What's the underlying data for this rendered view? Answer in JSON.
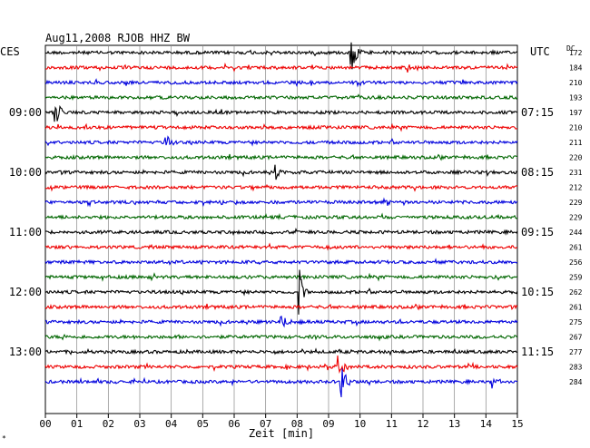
{
  "chart_data": {
    "type": "line",
    "title": "Aug11,2008   RJOB HHZ BW",
    "left_tz_label": "CES",
    "right_tz_label": "UTC",
    "dc_label": "DC",
    "xlabel": "Zeit [min]",
    "x_ticks": [
      "00",
      "01",
      "02",
      "03",
      "04",
      "05",
      "06",
      "07",
      "08",
      "09",
      "10",
      "11",
      "12",
      "13",
      "14",
      "15"
    ],
    "xlim": [
      0,
      15
    ],
    "grid": true,
    "left_time_labels": [
      {
        "row": 4,
        "text": "09:00"
      },
      {
        "row": 8,
        "text": "10:00"
      },
      {
        "row": 12,
        "text": "11:00"
      },
      {
        "row": 16,
        "text": "12:00"
      },
      {
        "row": 20,
        "text": "13:00"
      }
    ],
    "right_time_labels": [
      {
        "row": 4,
        "text": "07:15"
      },
      {
        "row": 8,
        "text": "08:15"
      },
      {
        "row": 12,
        "text": "09:15"
      },
      {
        "row": 16,
        "text": "10:15"
      },
      {
        "row": 20,
        "text": "11:15"
      }
    ],
    "dc_values": [
      172,
      184,
      210,
      193,
      197,
      210,
      211,
      220,
      231,
      212,
      229,
      229,
      244,
      261,
      256,
      259,
      262,
      261,
      275,
      267,
      277,
      283,
      284
    ],
    "trace_colors": [
      "#000000",
      "#ee0000",
      "#0000dd",
      "#006600"
    ],
    "events": [
      {
        "row": 0,
        "minute": 9.7,
        "amplitude": 28,
        "color_index": 0
      },
      {
        "row": 1,
        "minute": 11.5,
        "amplitude": 10,
        "color_index": 1
      },
      {
        "row": 4,
        "minute": 0.3,
        "amplitude": 22,
        "color_index": 0
      },
      {
        "row": 6,
        "minute": 3.8,
        "amplitude": 10,
        "color_index": 2
      },
      {
        "row": 8,
        "minute": 7.3,
        "amplitude": 12,
        "color_index": 0
      },
      {
        "row": 10,
        "minute": 10.8,
        "amplitude": 8,
        "color_index": 2
      },
      {
        "row": 16,
        "minute": 8.05,
        "amplitude": 30,
        "color_index": 0
      },
      {
        "row": 18,
        "minute": 7.5,
        "amplitude": 14,
        "color_index": 2
      },
      {
        "row": 21,
        "minute": 9.3,
        "amplitude": 16,
        "color_index": 1
      },
      {
        "row": 22,
        "minute": 9.4,
        "amplitude": 24,
        "color_index": 2
      },
      {
        "row": 22,
        "minute": 14.2,
        "amplitude": 8,
        "color_index": 2
      }
    ]
  }
}
